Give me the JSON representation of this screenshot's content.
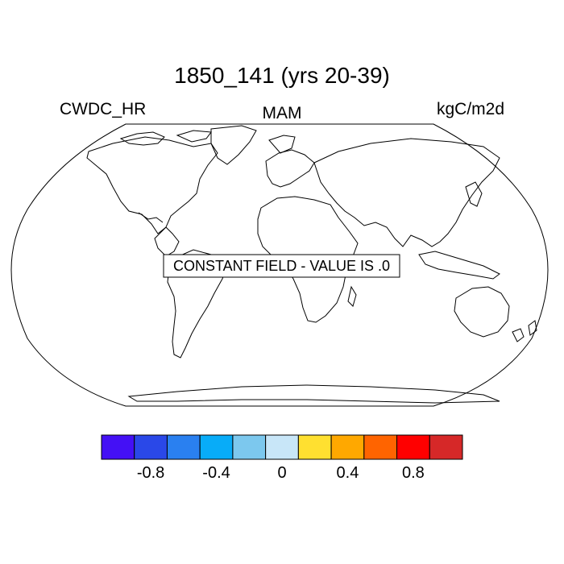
{
  "title": "1850_141 (yrs 20-39)",
  "left_label": "CWDC_HR",
  "center_label": "MAM",
  "right_label": "kgC/m2d",
  "notice": "CONSTANT FIELD - VALUE IS .0",
  "colorbar": {
    "colors": [
      "#4410f5",
      "#2a48e8",
      "#2a80f0",
      "#08acf8",
      "#7cc8ee",
      "#c8e6f8",
      "#ffe030",
      "#ffa800",
      "#ff6400",
      "#ff0000",
      "#d62828"
    ],
    "tick_labels": [
      "-0.8",
      "-0.4",
      "0",
      "0.4",
      "0.8"
    ],
    "tick_values": [
      -0.8,
      -0.4,
      0,
      0.4,
      0.8
    ],
    "range": [
      -1.0,
      1.0
    ]
  }
}
